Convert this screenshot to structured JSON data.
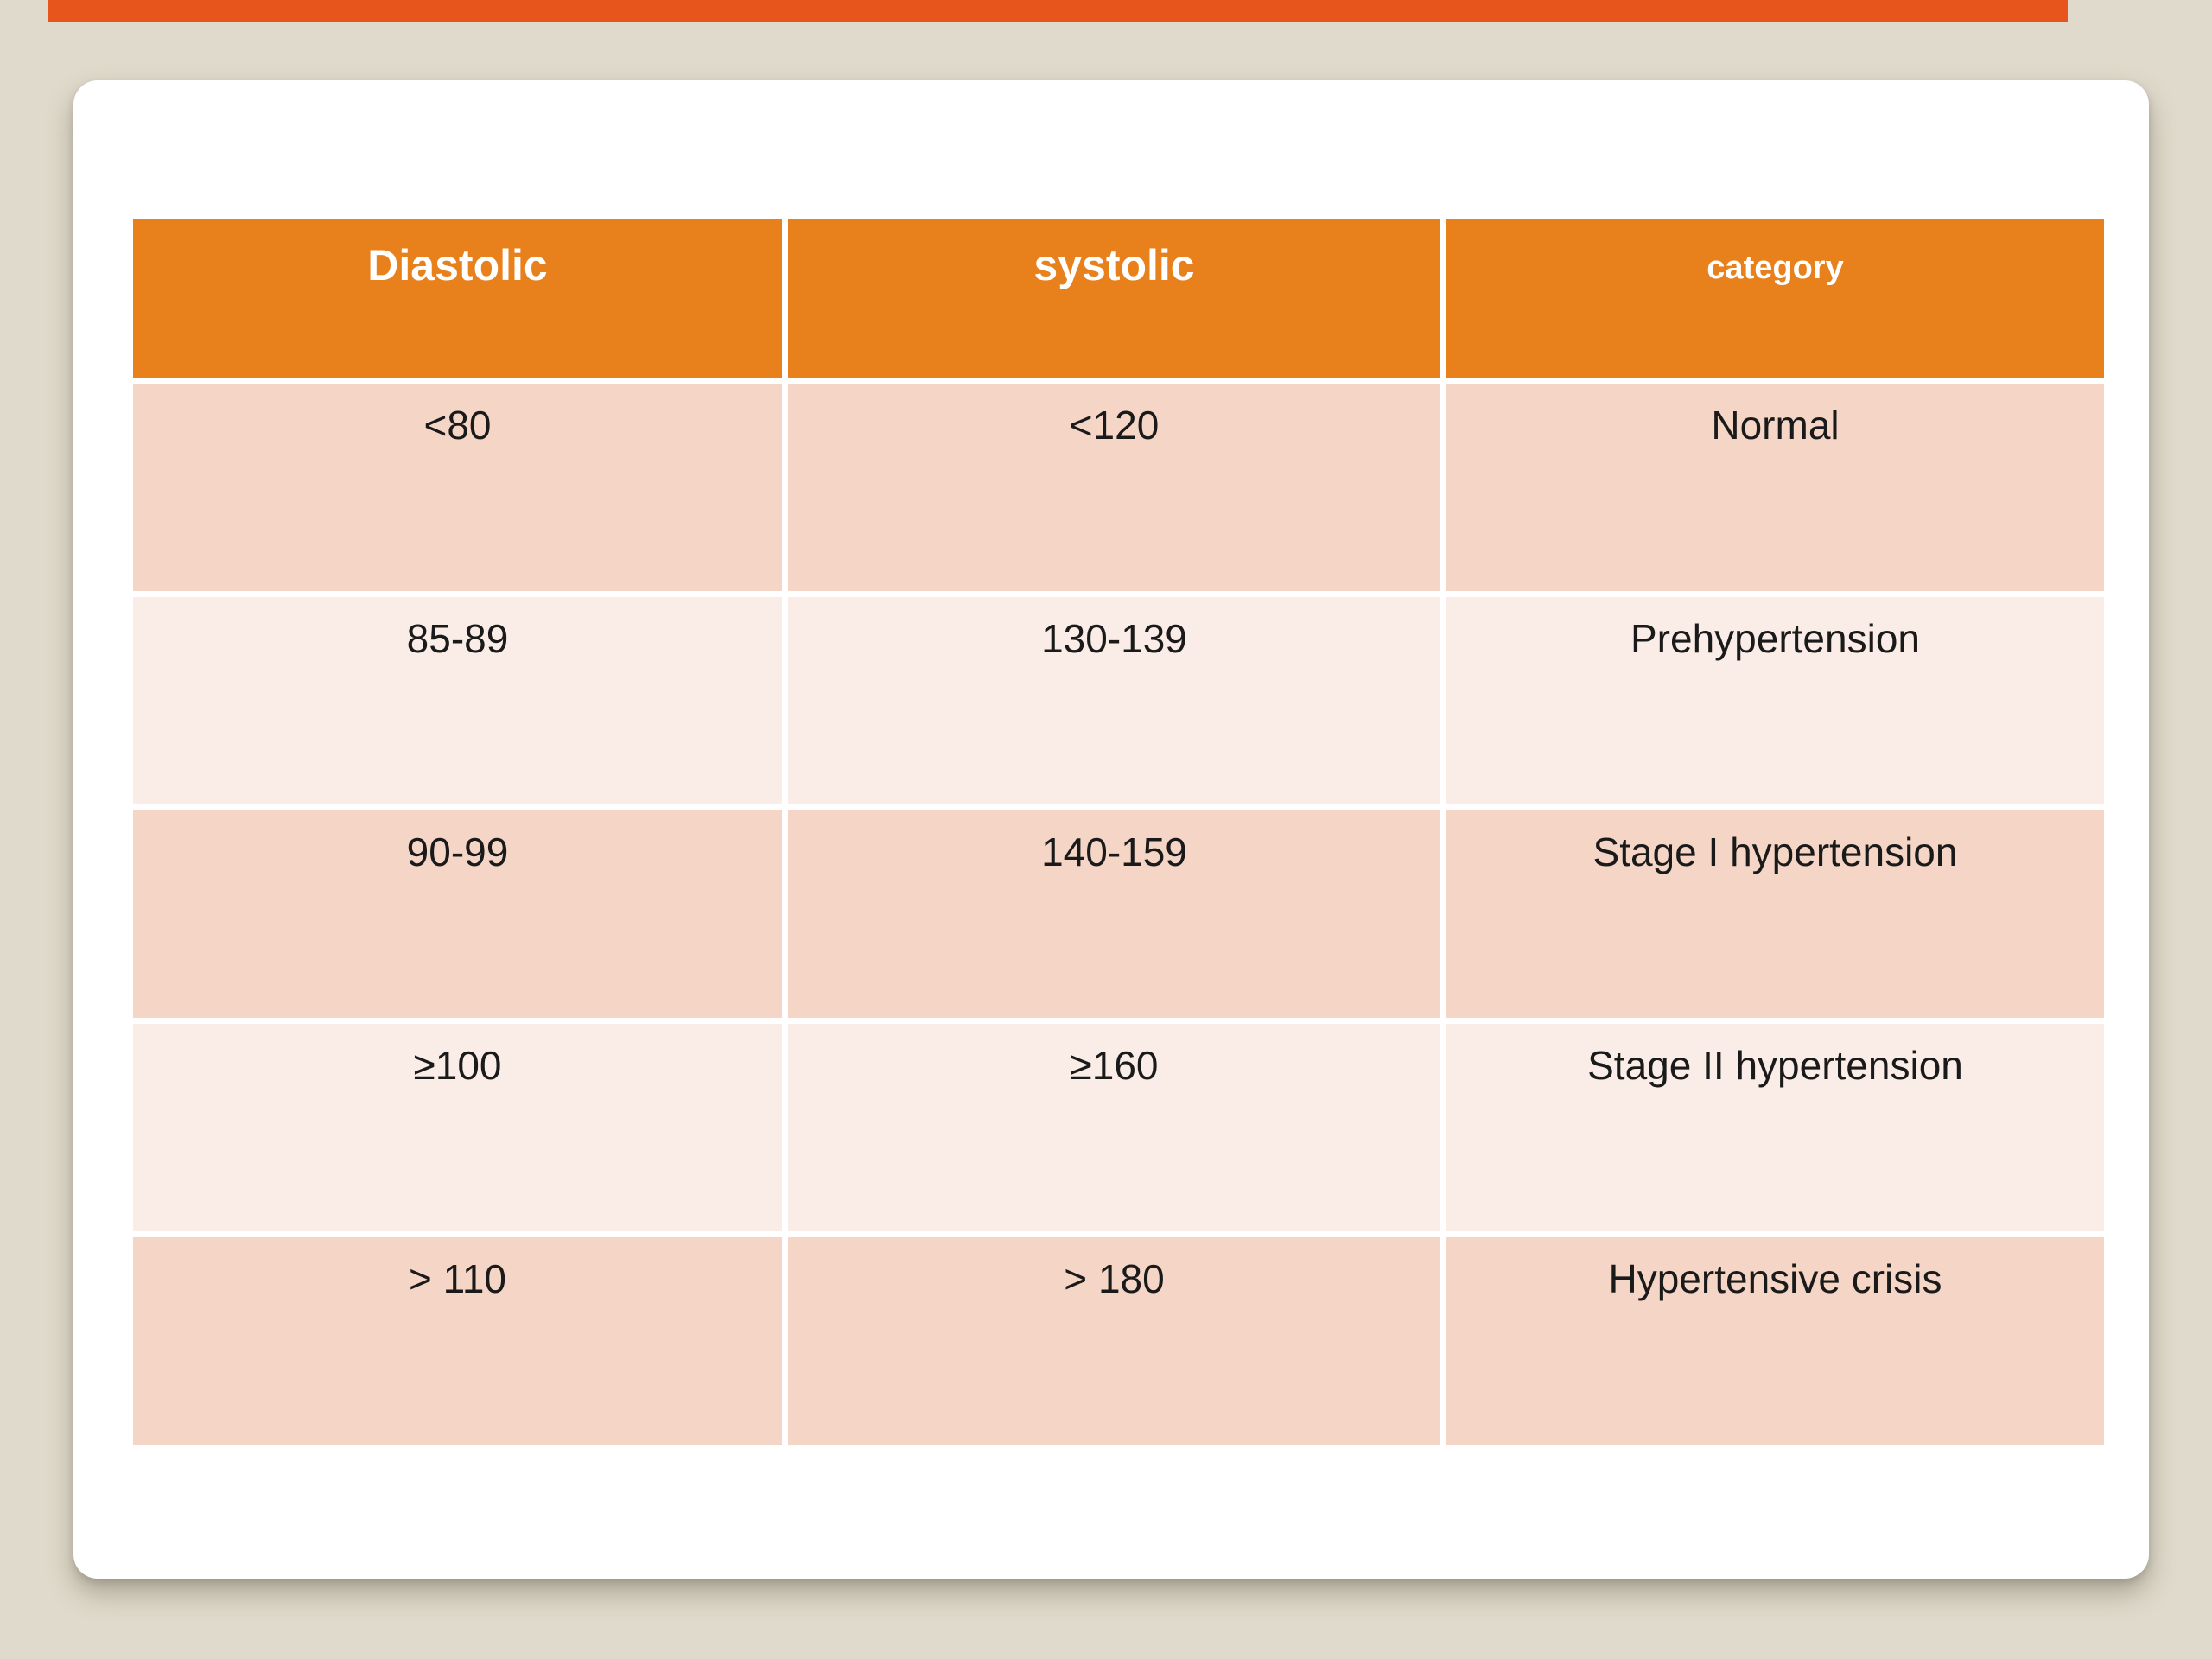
{
  "slide": {
    "background_color": "#DFDACB",
    "top_bar_color": "#E7551C",
    "card_color": "#FFFFFF"
  },
  "table": {
    "header_bg": "#E8801C",
    "header_text_color": "#FFFFFF",
    "row_band_dark": "#F5D5C6",
    "row_band_light": "#FAECE6",
    "header": {
      "diastolic": "Diastolic",
      "systolic": "systolic",
      "category": "category"
    },
    "rows": [
      {
        "diastolic": "<80",
        "systolic": "<120",
        "category": "Normal"
      },
      {
        "diastolic": "85-89",
        "systolic": "130-139",
        "category": "Prehypertension"
      },
      {
        "diastolic": "90-99",
        "systolic": "140-159",
        "category": "Stage I hypertension"
      },
      {
        "diastolic": "≥100",
        "systolic": "≥160",
        "category": "Stage II hypertension"
      },
      {
        "diastolic": "> 110",
        "systolic": "> 180",
        "category": "Hypertensive crisis"
      }
    ]
  }
}
